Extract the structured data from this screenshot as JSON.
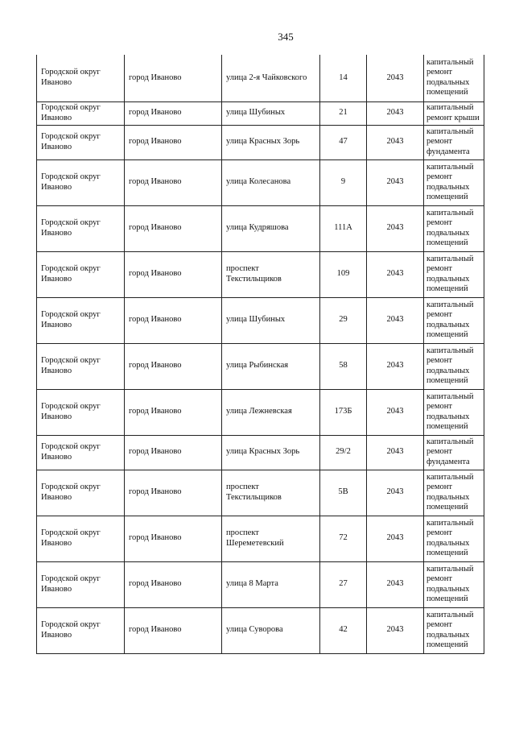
{
  "page_number": "345",
  "rows": [
    {
      "okrug": "Городской округ Иваново",
      "city": "город Иваново",
      "street": "улица 2-я Чайковского",
      "house": "14",
      "year": "2043",
      "work": "капитальный ремонт подвальных помещений"
    },
    {
      "okrug": "Городской округ Иваново",
      "city": "город Иваново",
      "street": "улица Шубиных",
      "house": "21",
      "year": "2043",
      "work": "капитальный ремонт крыши"
    },
    {
      "okrug": "Городской округ Иваново",
      "city": "город Иваново",
      "street": "улица Красных Зорь",
      "house": "47",
      "year": "2043",
      "work": "капитальный ремонт фундамента"
    },
    {
      "okrug": "Городской округ Иваново",
      "city": "город Иваново",
      "street": "улица Колесанова",
      "house": "9",
      "year": "2043",
      "work": "капитальный ремонт подвальных помещений"
    },
    {
      "okrug": "Городской округ Иваново",
      "city": "город Иваново",
      "street": "улица Кудряшова",
      "house": "111А",
      "year": "2043",
      "work": "капитальный ремонт подвальных помещений"
    },
    {
      "okrug": "Городской округ Иваново",
      "city": "город Иваново",
      "street": "проспект Текстильщиков",
      "house": "109",
      "year": "2043",
      "work": "капитальный ремонт подвальных помещений"
    },
    {
      "okrug": "Городской округ Иваново",
      "city": "город Иваново",
      "street": "улица Шубиных",
      "house": "29",
      "year": "2043",
      "work": "капитальный ремонт подвальных помещений"
    },
    {
      "okrug": "Городской округ Иваново",
      "city": "город Иваново",
      "street": "улица Рыбинская",
      "house": "58",
      "year": "2043",
      "work": "капитальный ремонт подвальных помещений"
    },
    {
      "okrug": "Городской округ Иваново",
      "city": "город Иваново",
      "street": "улица Лежневская",
      "house": "173Б",
      "year": "2043",
      "work": "капитальный ремонт подвальных помещений"
    },
    {
      "okrug": "Городской округ Иваново",
      "city": "город Иваново",
      "street": "улица Красных Зорь",
      "house": "29/2",
      "year": "2043",
      "work": "капитальный ремонт фундамента"
    },
    {
      "okrug": "Городской округ Иваново",
      "city": "город Иваново",
      "street": "проспект Текстильщиков",
      "house": "5В",
      "year": "2043",
      "work": "капитальный ремонт подвальных помещений"
    },
    {
      "okrug": "Городской округ Иваново",
      "city": "город Иваново",
      "street": "проспект Шереметевский",
      "house": "72",
      "year": "2043",
      "work": "капитальный ремонт подвальных помещений"
    },
    {
      "okrug": "Городской округ Иваново",
      "city": "город Иваново",
      "street": "улица 8 Марта",
      "house": "27",
      "year": "2043",
      "work": "капитальный ремонт подвальных помещений"
    },
    {
      "okrug": "Городской округ Иваново",
      "city": "город Иваново",
      "street": "улица Суворова",
      "house": "42",
      "year": "2043",
      "work": "капитальный ремонт подвальных помещений"
    }
  ]
}
